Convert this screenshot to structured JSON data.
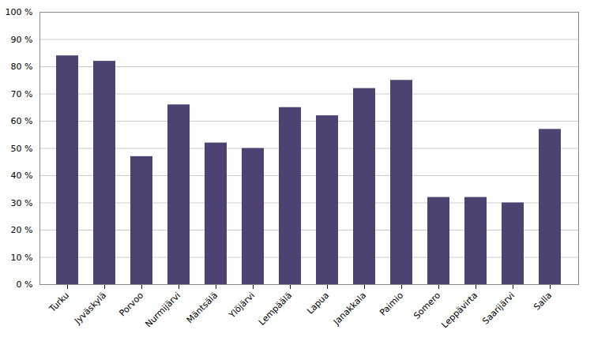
{
  "chart_data": {
    "type": "bar",
    "categories": [
      "Turku",
      "Jyväskylä",
      "Porvoo",
      "Nurmijärvi",
      "Mäntsälä",
      "Ylöjärvi",
      "Lempäälä",
      "Lapua",
      "Janakkala",
      "Paimio",
      "Somero",
      "Leppävirta",
      "Saarijärvi",
      "Salla"
    ],
    "values": [
      0.84,
      0.82,
      0.47,
      0.66,
      0.52,
      0.5,
      0.65,
      0.62,
      0.72,
      0.75,
      0.32,
      0.32,
      0.3,
      0.57
    ],
    "color": "#4d4272",
    "ylim": [
      0,
      1.0
    ],
    "yticks": [
      {
        "value": 0.0,
        "label": "0 %"
      },
      {
        "value": 0.1,
        "label": "10 %"
      },
      {
        "value": 0.2,
        "label": "20 %"
      },
      {
        "value": 0.3,
        "label": "30 %"
      },
      {
        "value": 0.4,
        "label": "40 %"
      },
      {
        "value": 0.5,
        "label": "50 %"
      },
      {
        "value": 0.6,
        "label": "60 %"
      },
      {
        "value": 0.7,
        "label": "70 %"
      },
      {
        "value": 0.8,
        "label": "80 %"
      },
      {
        "value": 0.9,
        "label": "90 %"
      },
      {
        "value": 1.0,
        "label": "100 %"
      }
    ],
    "grid": true
  }
}
